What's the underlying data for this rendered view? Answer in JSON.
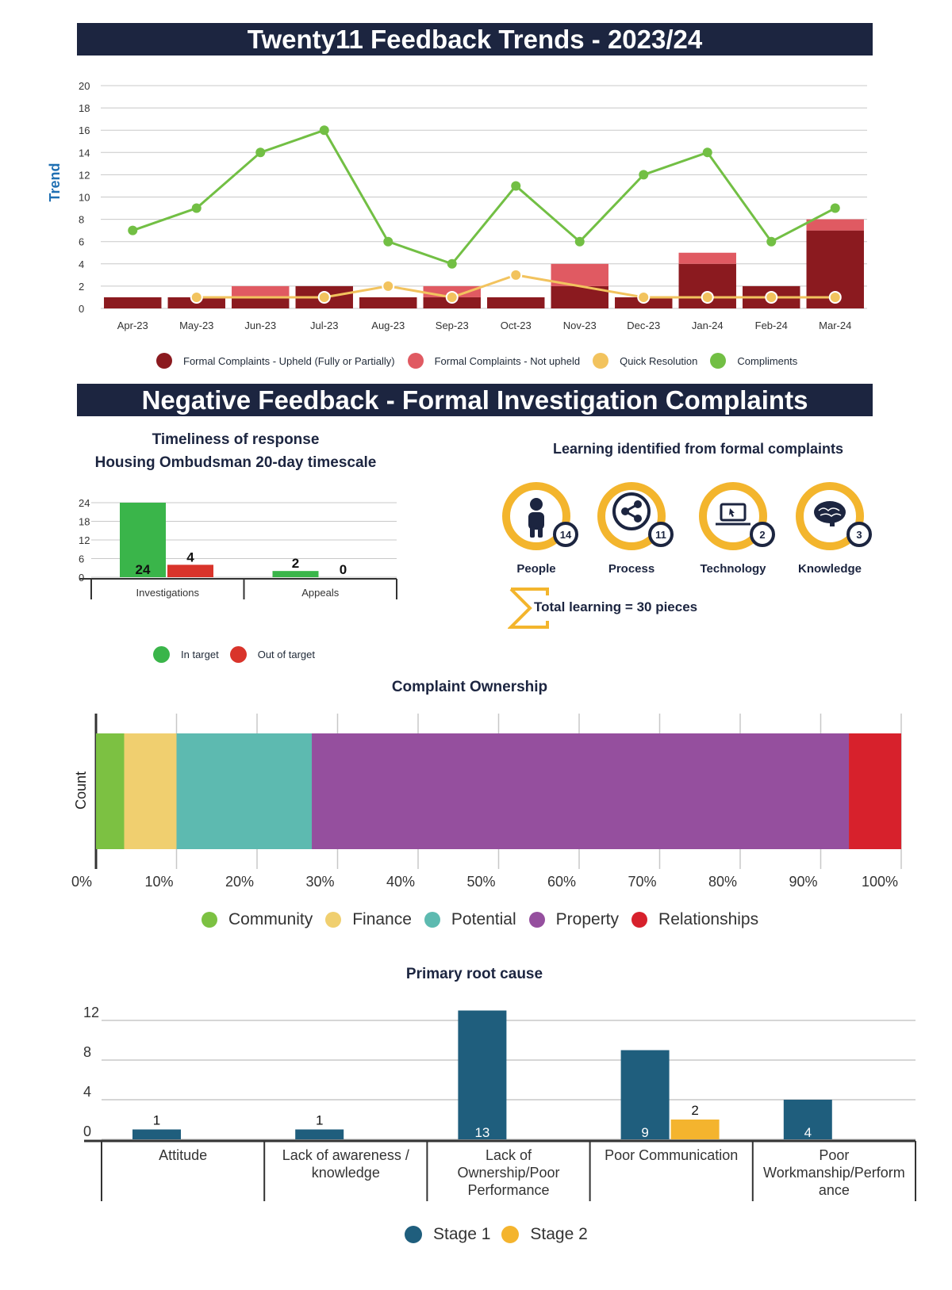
{
  "banner_top": "Twenty11 Feedback Trends - 2023/24",
  "banner_mid": "Negative Feedback - Formal Investigation Complaints",
  "colors": {
    "navy": "#1c2540",
    "upheld": "#8b1a1f",
    "notupheld": "#e05a62",
    "quick": "#f2c35e",
    "compliments": "#72bf44",
    "green": "#3ab54a",
    "red": "#d9342b",
    "teal": "#1f5e7d",
    "yellow": "#f4b42e",
    "ring": "#f3b52d"
  },
  "chart_data": [
    {
      "id": "trends",
      "type": "bar+line",
      "ylabel": "Trend",
      "ylim": [
        0,
        20
      ],
      "yticks": [
        "20",
        "18",
        "16",
        "14",
        "12",
        "10",
        "8",
        "6",
        "4",
        "2",
        "0"
      ],
      "categories": [
        "Apr-23",
        "May-23",
        "Jun-23",
        "Jul-23",
        "Aug-23",
        "Sep-23",
        "Oct-23",
        "Nov-23",
        "Dec-23",
        "Jan-24",
        "Feb-24",
        "Mar-24"
      ],
      "series": [
        {
          "name": "Formal Complaints - Upheld (Fully or Partially)",
          "kind": "stacked-bar",
          "values": [
            1,
            1,
            1,
            2,
            1,
            1,
            1,
            2,
            1,
            4,
            2,
            7
          ]
        },
        {
          "name": "Formal Complaints - Not upheld",
          "kind": "stacked-bar",
          "values": [
            0,
            0,
            1,
            0,
            0,
            1,
            0,
            2,
            0,
            1,
            0,
            1
          ]
        },
        {
          "name": "Quick Resolution",
          "kind": "line",
          "values": [
            null,
            1,
            null,
            1,
            2,
            1,
            3,
            null,
            1,
            1,
            1,
            1
          ]
        },
        {
          "name": "Compliments",
          "kind": "line",
          "values": [
            7,
            9,
            14,
            16,
            6,
            4,
            11,
            6,
            12,
            14,
            6,
            9
          ]
        }
      ]
    },
    {
      "id": "timeliness",
      "type": "bar",
      "title_line1": "Timeliness of  response",
      "title_line2": "Housing Ombudsman 20-day timescale",
      "ylim": [
        0,
        24
      ],
      "yticks": [
        "24",
        "18",
        "12",
        "6",
        "0"
      ],
      "categories": [
        "Investigations",
        "Appeals"
      ],
      "series": [
        {
          "name": "In target",
          "values": [
            24,
            2
          ],
          "labels": [
            "24",
            "2"
          ]
        },
        {
          "name": "Out of target",
          "values": [
            4,
            0
          ],
          "labels": [
            "4",
            "0"
          ]
        }
      ]
    },
    {
      "id": "ownership",
      "type": "stacked-bar-100",
      "title": "Complaint Ownership",
      "ylabel": "Count",
      "xticks": [
        "0%",
        "10%",
        "20%",
        "30%",
        "40%",
        "50%",
        "60%",
        "70%",
        "80%",
        "90%",
        "100%"
      ],
      "series": [
        {
          "name": "Community",
          "value": 3.5
        },
        {
          "name": "Finance",
          "value": 6.5
        },
        {
          "name": "Potential",
          "value": 16.8
        },
        {
          "name": "Property",
          "value": 66.7
        },
        {
          "name": "Relationships",
          "value": 6.5
        }
      ]
    },
    {
      "id": "rootcause",
      "type": "bar",
      "title": "Primary root cause",
      "ylim": [
        0,
        12
      ],
      "yticks": [
        "12",
        "8",
        "4",
        "0"
      ],
      "categories": [
        [
          "Attitude"
        ],
        [
          "Lack of awareness /",
          "knowledge"
        ],
        [
          "Lack of",
          "Ownership/Poor",
          "Performance"
        ],
        [
          "Poor Communication"
        ],
        [
          "Poor",
          "Workmanship/Perform",
          "ance"
        ]
      ],
      "series": [
        {
          "name": "Stage 1",
          "values": [
            1,
            1,
            13,
            9,
            4
          ],
          "labels": [
            "1",
            "1",
            "13",
            "9",
            "4"
          ]
        },
        {
          "name": "Stage 2",
          "values": [
            0,
            0,
            0,
            2,
            0
          ],
          "labels": [
            "",
            "",
            "",
            "2",
            ""
          ]
        }
      ]
    }
  ],
  "learning": {
    "title": "Learning identified from formal complaints",
    "items": [
      {
        "label": "People",
        "count": "14",
        "icon": "person-icon"
      },
      {
        "label": "Process",
        "count": "11",
        "icon": "share-icon"
      },
      {
        "label": "Technology",
        "count": "2",
        "icon": "laptop-icon"
      },
      {
        "label": "Knowledge",
        "count": "3",
        "icon": "brain-icon"
      }
    ],
    "total": "Total learning = 30 pieces"
  }
}
